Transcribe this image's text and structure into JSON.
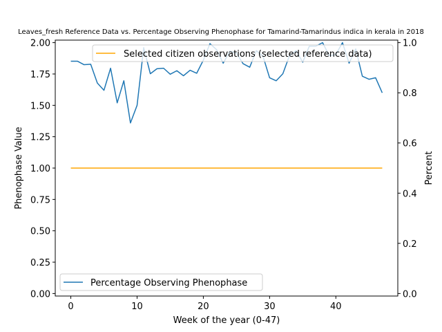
{
  "chart_data": {
    "type": "line",
    "title": "Leaves_fresh Reference Data vs. Percentage Observing Phenophase for Tamarind-Tamarindus indica in kerala in 2018",
    "xlabel": "Week of the year (0-47)",
    "ylabel_left": "Phenophase Value",
    "ylabel_right": "Percent",
    "xlim": [
      -2.35,
      49.35
    ],
    "ylim_left": [
      -0.02,
      2.02
    ],
    "ylim_right": [
      -0.01,
      1.01
    ],
    "xticks": [
      0,
      10,
      20,
      30,
      40
    ],
    "yticks_left": [
      "0.00",
      "0.25",
      "0.50",
      "0.75",
      "1.00",
      "1.25",
      "1.50",
      "1.75",
      "2.00"
    ],
    "yticks_right": [
      "0.0",
      "0.2",
      "0.4",
      "0.6",
      "0.8",
      "1.0"
    ],
    "legend_placement": "upper right and lower left",
    "grid": false,
    "series": [
      {
        "name": "Selected citizen observations (selected reference data)",
        "axis": "left",
        "color": "#ffa500",
        "x": [
          0,
          47
        ],
        "values": [
          1.0,
          1.0
        ]
      },
      {
        "name": "Percentage Observing Phenophase",
        "axis": "right",
        "color": "#1f77b4",
        "x": [
          0,
          1,
          2,
          3,
          4,
          5,
          6,
          7,
          8,
          9,
          10,
          11,
          12,
          13,
          14,
          15,
          16,
          17,
          18,
          19,
          20,
          21,
          22,
          23,
          24,
          25,
          26,
          27,
          28,
          29,
          30,
          31,
          32,
          33,
          34,
          35,
          36,
          37,
          38,
          39,
          40,
          41,
          42,
          43,
          44,
          45,
          46,
          47
        ],
        "values": [
          0.926,
          0.926,
          0.912,
          0.914,
          0.839,
          0.81,
          0.898,
          0.76,
          0.848,
          0.68,
          0.75,
          0.98,
          0.876,
          0.896,
          0.898,
          0.874,
          0.888,
          0.868,
          0.89,
          0.878,
          0.93,
          0.996,
          0.972,
          0.918,
          0.966,
          0.958,
          0.916,
          0.902,
          0.968,
          0.946,
          0.86,
          0.848,
          0.876,
          0.948,
          0.968,
          0.922,
          0.986,
          0.986,
          1.0,
          0.948,
          0.952,
          1.0,
          0.918,
          0.975,
          0.866,
          0.854,
          0.86,
          0.8
        ]
      }
    ]
  }
}
